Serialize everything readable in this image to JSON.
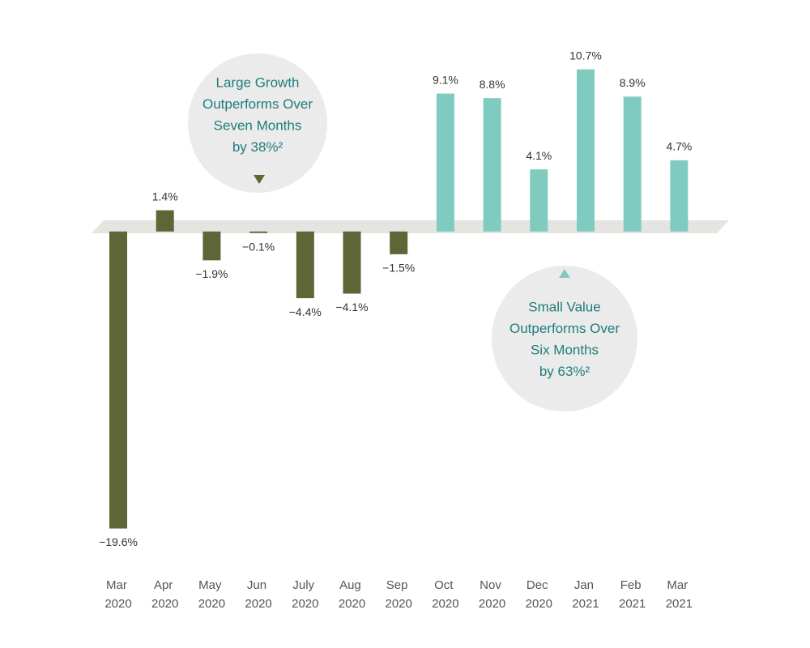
{
  "chart_data": {
    "type": "bar",
    "categories": [
      "Mar 2020",
      "Apr 2020",
      "May 2020",
      "Jun 2020",
      "July 2020",
      "Aug 2020",
      "Sep 2020",
      "Oct 2020",
      "Nov 2020",
      "Dec 2020",
      "Jan 2021",
      "Feb 2021",
      "Mar 2021"
    ],
    "values": [
      -19.6,
      1.4,
      -1.9,
      -0.1,
      -4.4,
      -4.1,
      -1.5,
      9.1,
      8.8,
      4.1,
      10.7,
      8.9,
      4.7
    ],
    "value_labels": [
      "−19.6%",
      "1.4%",
      "−1.9%",
      "−0.1%",
      "−4.4%",
      "−4.1%",
      "−1.5%",
      "9.1%",
      "8.8%",
      "4.1%",
      "10.7%",
      "8.9%",
      "4.7%"
    ],
    "colors": [
      "#5c6636",
      "#5c6636",
      "#5c6636",
      "#5c6636",
      "#5c6636",
      "#5c6636",
      "#5c6636",
      "#80cbc0",
      "#80cbc0",
      "#80cbc0",
      "#80cbc0",
      "#80cbc0",
      "#80cbc0"
    ],
    "ylim": [
      -20,
      11
    ],
    "annotations": [
      {
        "lines": [
          "Large Growth",
          "Outperforms Over",
          "Seven Months",
          "by 38%²"
        ],
        "color": "#5c6636"
      },
      {
        "lines": [
          "Small Value",
          "Outperforms Over",
          "Six Months",
          "by 63%²"
        ],
        "color": "#80cbc0"
      }
    ]
  }
}
